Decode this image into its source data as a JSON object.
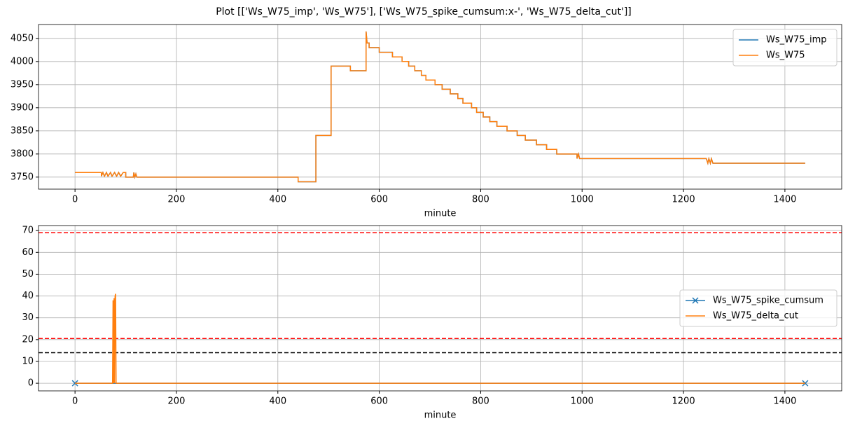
{
  "title": "Plot [['Ws_W75_imp', 'Ws_W75'], ['Ws_W75_spike_cumsum:x-', 'Ws_W75_delta_cut']]",
  "chart_data": [
    {
      "type": "line",
      "xlabel": "minute",
      "grid": true,
      "legend": "upper right",
      "xlim": [
        -72,
        1512
      ],
      "xticks": [
        0,
        200,
        400,
        600,
        800,
        1000,
        1200,
        1400
      ],
      "ylim": [
        3724,
        4080
      ],
      "yticks": [
        3750,
        3800,
        3850,
        3900,
        3950,
        4000,
        4050
      ],
      "x": [
        0,
        52,
        52,
        55,
        58,
        62,
        65,
        70,
        73,
        78,
        82,
        86,
        90,
        95,
        100,
        100,
        115,
        116,
        118,
        120,
        122,
        440,
        440,
        475,
        475,
        505,
        505,
        543,
        543,
        574,
        574,
        576,
        580,
        580,
        600,
        600,
        626,
        626,
        645,
        645,
        658,
        658,
        670,
        670,
        683,
        683,
        692,
        692,
        710,
        710,
        724,
        724,
        740,
        740,
        755,
        755,
        765,
        765,
        782,
        782,
        792,
        792,
        805,
        805,
        818,
        818,
        832,
        832,
        852,
        852,
        872,
        872,
        888,
        888,
        910,
        910,
        930,
        930,
        950,
        950,
        990,
        990,
        993,
        995,
        1245,
        1248,
        1250,
        1253,
        1255,
        1258,
        1440
      ],
      "series": [
        {
          "name": "Ws_W75_imp",
          "color": "#1f77b4",
          "values": [
            3760,
            3760,
            3752,
            3760,
            3752,
            3760,
            3752,
            3760,
            3752,
            3760,
            3752,
            3760,
            3752,
            3760,
            3760,
            3750,
            3750,
            3760,
            3750,
            3757,
            3750,
            3750,
            3740,
            3740,
            3840,
            3840,
            3990,
            3990,
            3980,
            3980,
            4065,
            4040,
            4040,
            4030,
            4030,
            4020,
            4020,
            4010,
            4010,
            4000,
            4000,
            3990,
            3990,
            3980,
            3980,
            3970,
            3970,
            3960,
            3960,
            3950,
            3950,
            3940,
            3940,
            3930,
            3930,
            3920,
            3920,
            3910,
            3910,
            3900,
            3900,
            3890,
            3890,
            3880,
            3880,
            3870,
            3870,
            3860,
            3860,
            3850,
            3850,
            3840,
            3840,
            3830,
            3830,
            3820,
            3820,
            3810,
            3810,
            3800,
            3800,
            3790,
            3800,
            3790,
            3790,
            3780,
            3790,
            3780,
            3790,
            3780,
            3780
          ]
        },
        {
          "name": "Ws_W75",
          "color": "#ff7f0e",
          "values": [
            3760,
            3760,
            3752,
            3760,
            3752,
            3760,
            3752,
            3760,
            3752,
            3760,
            3752,
            3760,
            3752,
            3760,
            3760,
            3750,
            3750,
            3760,
            3750,
            3757,
            3750,
            3750,
            3740,
            3740,
            3840,
            3840,
            3990,
            3990,
            3980,
            3980,
            4065,
            4040,
            4040,
            4030,
            4030,
            4020,
            4020,
            4010,
            4010,
            4000,
            4000,
            3990,
            3990,
            3980,
            3980,
            3970,
            3970,
            3960,
            3960,
            3950,
            3950,
            3940,
            3940,
            3930,
            3930,
            3920,
            3920,
            3910,
            3910,
            3900,
            3900,
            3890,
            3890,
            3880,
            3880,
            3870,
            3870,
            3860,
            3860,
            3850,
            3850,
            3840,
            3840,
            3830,
            3830,
            3820,
            3820,
            3810,
            3810,
            3800,
            3800,
            3790,
            3800,
            3790,
            3790,
            3780,
            3790,
            3780,
            3790,
            3780,
            3780
          ]
        }
      ]
    },
    {
      "type": "line",
      "xlabel": "minute",
      "grid": true,
      "legend": "center right",
      "xlim": [
        -72,
        1512
      ],
      "xticks": [
        0,
        200,
        400,
        600,
        800,
        1000,
        1200,
        1400
      ],
      "ylim": [
        -3.5,
        72.3
      ],
      "yticks": [
        0,
        10,
        20,
        30,
        40,
        50,
        60,
        70
      ],
      "hlines": [
        {
          "y": 69,
          "color": "#ff0000"
        },
        {
          "y": 20.5,
          "color": "#ff0000"
        },
        {
          "y": 14,
          "color": "#000000"
        }
      ],
      "series": [
        {
          "name": "Ws_W75_spike_cumsum",
          "color": "#1f77b4",
          "marker": "x",
          "x": [
            0,
            1440
          ],
          "values": [
            0,
            0
          ]
        },
        {
          "name": "Ws_W75_delta_cut",
          "color": "#ff7f0e",
          "x": [
            0,
            74,
            75,
            76,
            77,
            78,
            79,
            80,
            81,
            1440
          ],
          "values": [
            0,
            0,
            38,
            0,
            39,
            0,
            40,
            41,
            0,
            0
          ]
        }
      ]
    }
  ]
}
